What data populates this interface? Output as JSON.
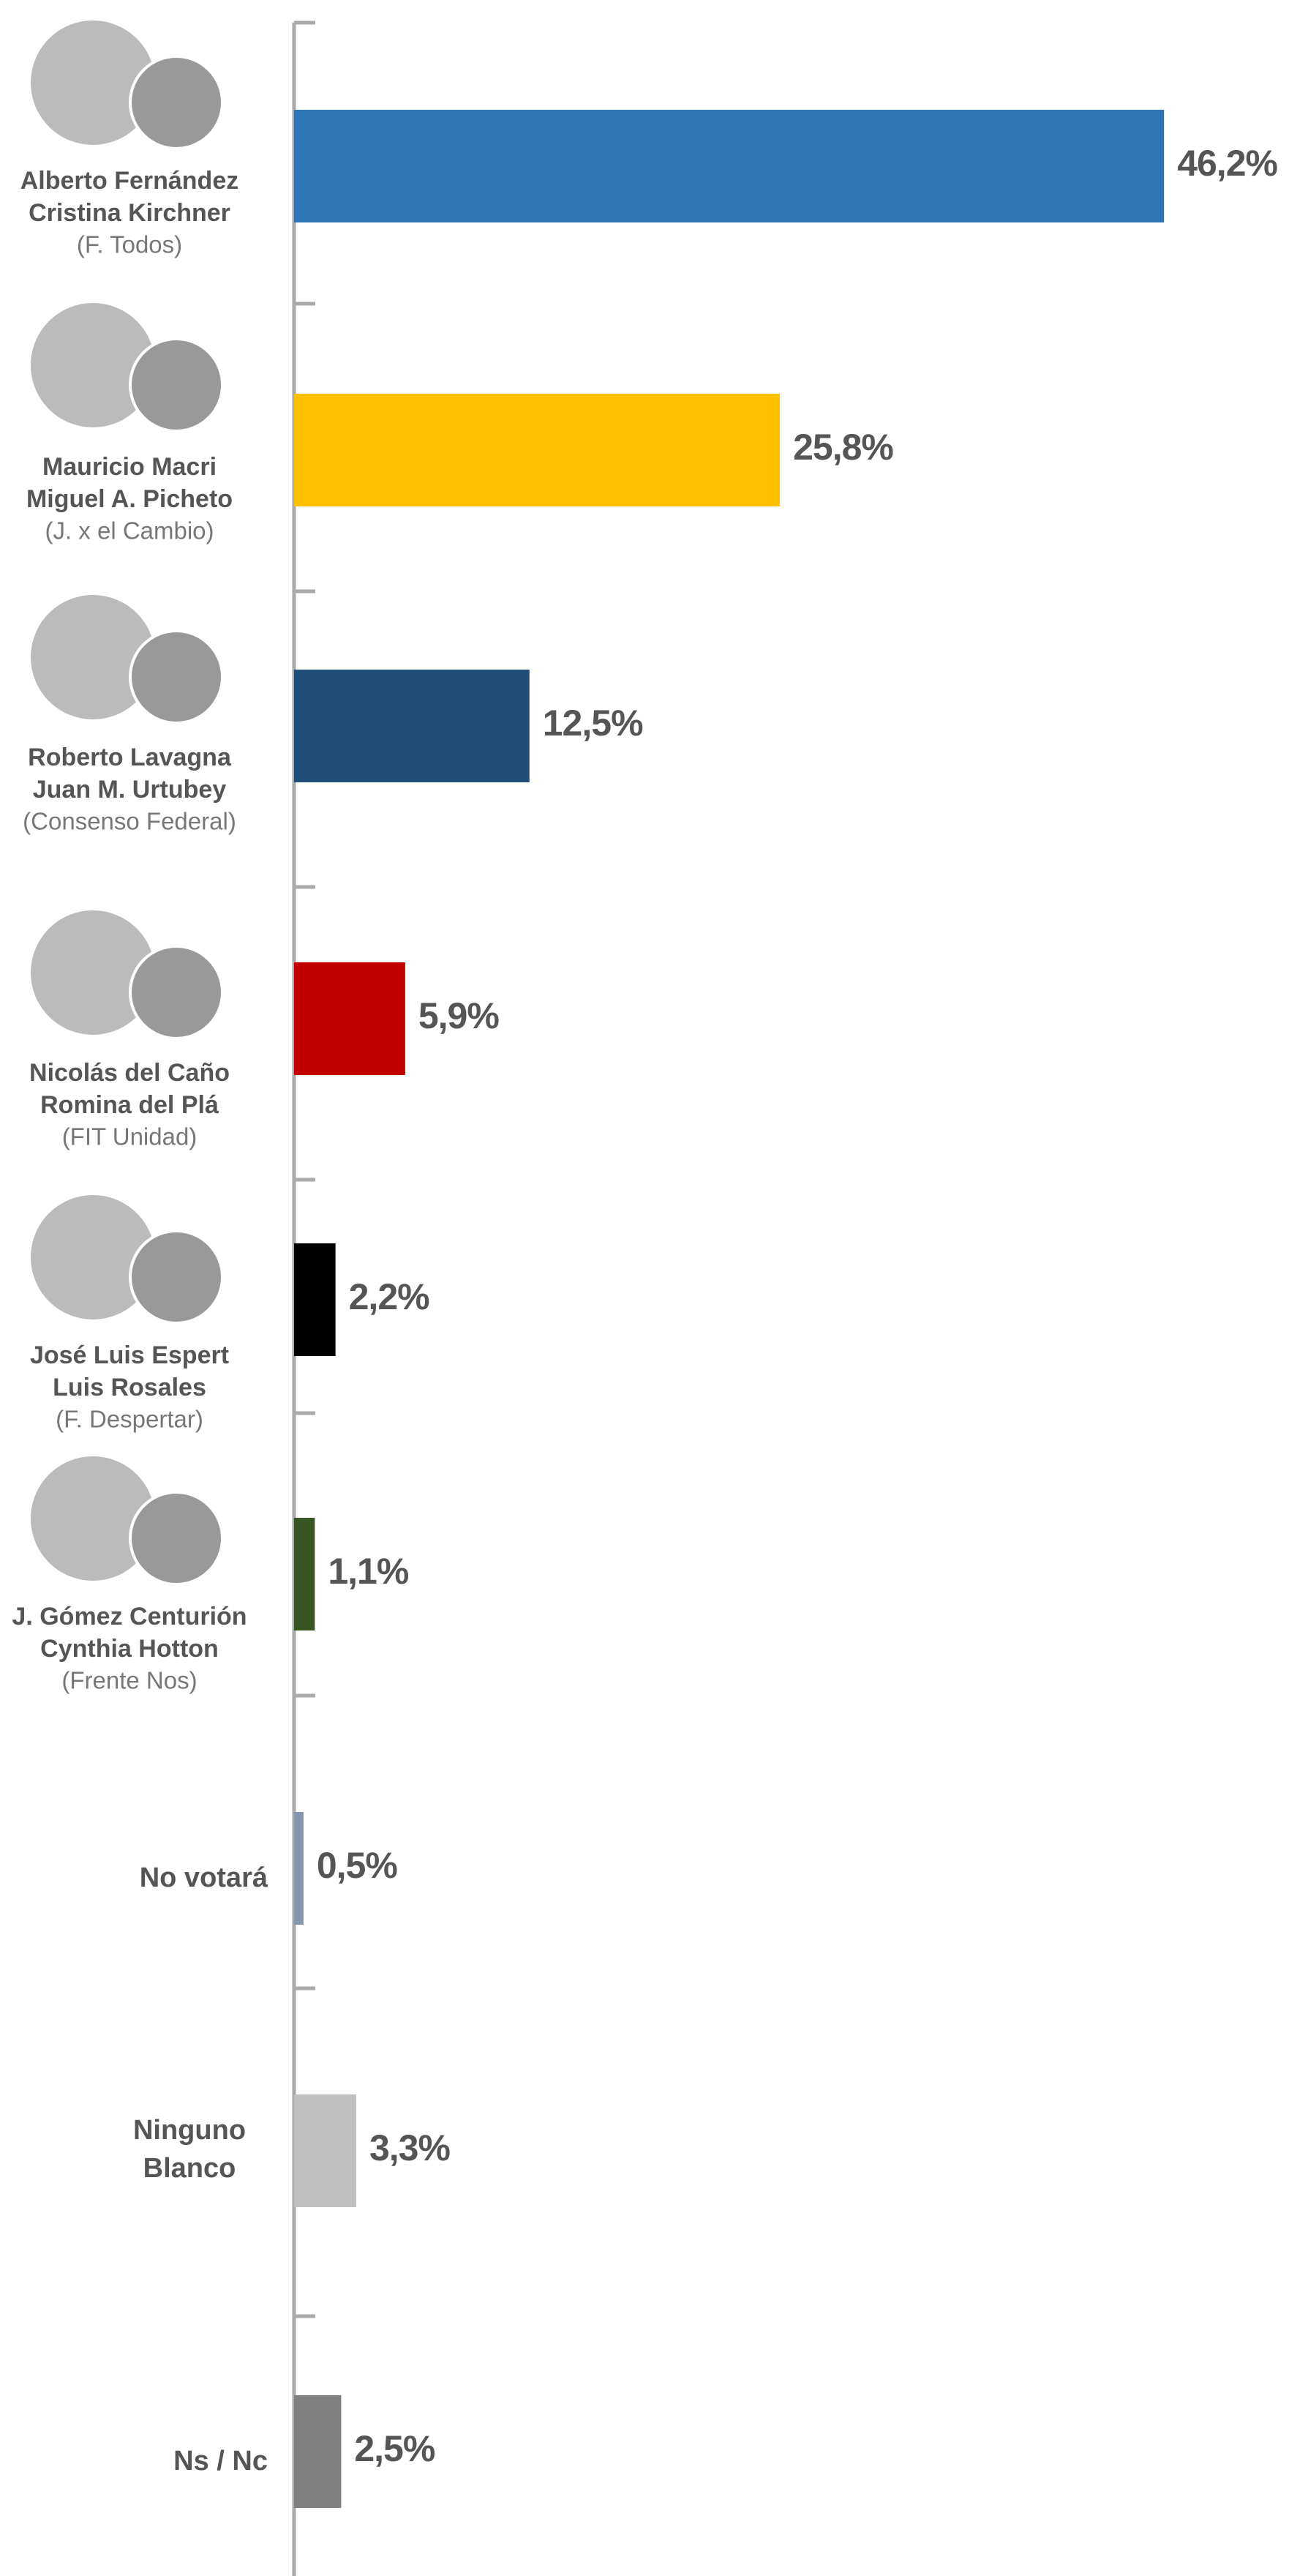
{
  "chart_data": {
    "type": "bar",
    "categories": [
      [
        "Alberto Fernández",
        "Cristina Kirchner"
      ],
      [
        "Mauricio Macri",
        "Miguel A. Picheto"
      ],
      [
        "Roberto Lavagna",
        "Juan M. Urtubey"
      ],
      [
        "Nicolás del Caño",
        "Romina del Plá"
      ],
      [
        "José Luis Espert",
        "Luis Rosales"
      ],
      [
        "J. Gómez Centurión",
        "Cynthia Hotton"
      ],
      [
        "No votará"
      ],
      [
        "Ninguno",
        "Blanco"
      ],
      [
        "Ns / Nc"
      ]
    ],
    "parties": [
      "(F. Todos)",
      "(J. x el Cambio)",
      "(Consenso Federal)",
      "(FIT Unidad)",
      "(F. Despertar)",
      "(Frente Nos)",
      null,
      null,
      null
    ],
    "values": [
      46.2,
      25.8,
      12.5,
      5.9,
      2.2,
      1.1,
      0.5,
      3.3,
      2.5
    ],
    "value_labels": [
      "46,2%",
      "25,8%",
      "12,5%",
      "5,9%",
      "2,2%",
      "1,1%",
      "0,5%",
      "3,3%",
      "2,5%"
    ],
    "colors": [
      "#2e75b6",
      "#ffc000",
      "#1f4e79",
      "#c00000",
      "#000000",
      "#375623",
      "#8497b0",
      "#bfbfbf",
      "#808080"
    ]
  }
}
